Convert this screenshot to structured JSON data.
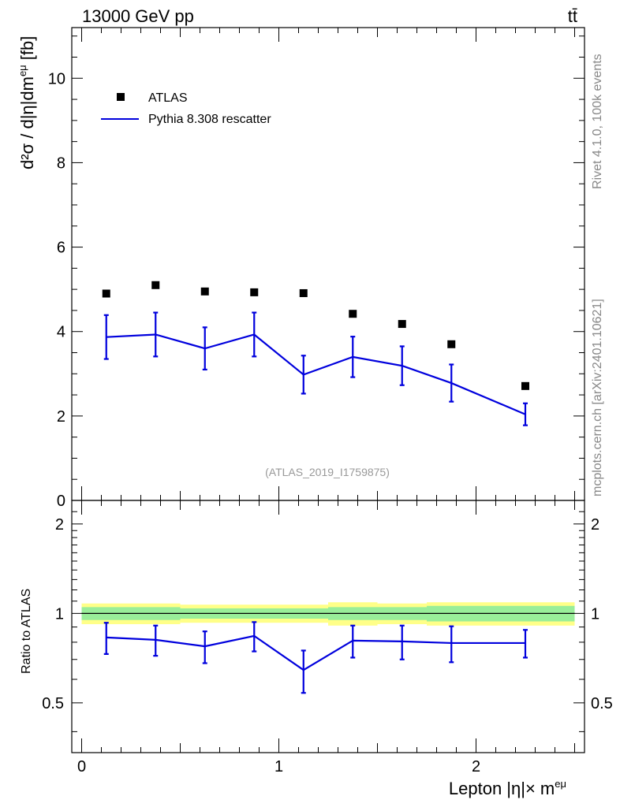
{
  "header": {
    "energy_label": "13000 GeV pp",
    "process_label": "tt̄",
    "watermark": "(ATLAS_2019_I1759875)"
  },
  "side_labels": {
    "rivet": "Rivet 4.1.0,  100k events",
    "source": "mcplots.cern.ch [arXiv:2401.10621]"
  },
  "chart_data": [
    {
      "panel": "main",
      "type": "line",
      "ylabel_main": "d²σ / d|η|dm",
      "ylabel_sup": "eμ",
      "ylabel_tail": " [fb]",
      "ylim": [
        0,
        11.2
      ],
      "yticks": [
        0,
        2,
        4,
        6,
        8,
        10
      ],
      "ytick_labels": [
        "0",
        "2",
        "4",
        "6",
        "8",
        "10"
      ],
      "legend": {
        "placement": "top-left",
        "entries": [
          "ATLAS",
          "Pythia 8.308 rescatter"
        ]
      },
      "x": [
        0.125,
        0.375,
        0.625,
        0.875,
        1.125,
        1.375,
        1.625,
        1.875,
        2.25
      ],
      "series": [
        {
          "name": "ATLAS",
          "style": "markers",
          "color": "#000000",
          "values": [
            4.9,
            5.1,
            4.95,
            4.93,
            4.91,
            4.42,
            4.18,
            3.7,
            2.71
          ]
        },
        {
          "name": "Pythia 8.308 rescatter",
          "style": "line",
          "color": "#0000dd",
          "values": [
            3.87,
            3.93,
            3.6,
            3.93,
            2.98,
            3.4,
            3.19,
            2.78,
            2.04
          ],
          "errors": [
            0.52,
            0.52,
            0.5,
            0.52,
            0.45,
            0.48,
            0.46,
            0.44,
            0.26
          ]
        }
      ]
    },
    {
      "panel": "ratio",
      "type": "line",
      "ylabel": "Ratio to ATLAS",
      "ylim": [
        0.34,
        2.4
      ],
      "scale": "log",
      "yticks": [
        0.5,
        1,
        2
      ],
      "ytick_labels": [
        "0.5",
        "1",
        "2"
      ],
      "xlabel_main": "Lepton |η|× m",
      "xlabel_sup": "eμ",
      "xlim": [
        -0.05,
        2.55
      ],
      "xticks": [
        0,
        1,
        2
      ],
      "xtick_labels": [
        "0",
        "1",
        "2"
      ],
      "x": [
        0.125,
        0.375,
        0.625,
        0.875,
        1.125,
        1.375,
        1.625,
        1.875,
        2.25
      ],
      "band_edges": [
        0,
        0.25,
        0.5,
        0.75,
        1.0,
        1.25,
        1.5,
        1.75,
        2.0,
        2.5
      ],
      "band_inner": [
        0.05,
        0.05,
        0.04,
        0.04,
        0.04,
        0.05,
        0.05,
        0.06,
        0.06
      ],
      "band_outer": [
        0.08,
        0.08,
        0.07,
        0.07,
        0.07,
        0.09,
        0.08,
        0.09,
        0.09
      ],
      "series": [
        {
          "name": "Pythia 8.308 rescatter",
          "color": "#0000dd",
          "values": [
            0.83,
            0.815,
            0.775,
            0.84,
            0.645,
            0.81,
            0.805,
            0.795,
            0.795
          ],
          "errors": [
            0.1,
            0.095,
            0.095,
            0.095,
            0.105,
            0.1,
            0.105,
            0.11,
            0.085
          ]
        }
      ]
    }
  ]
}
